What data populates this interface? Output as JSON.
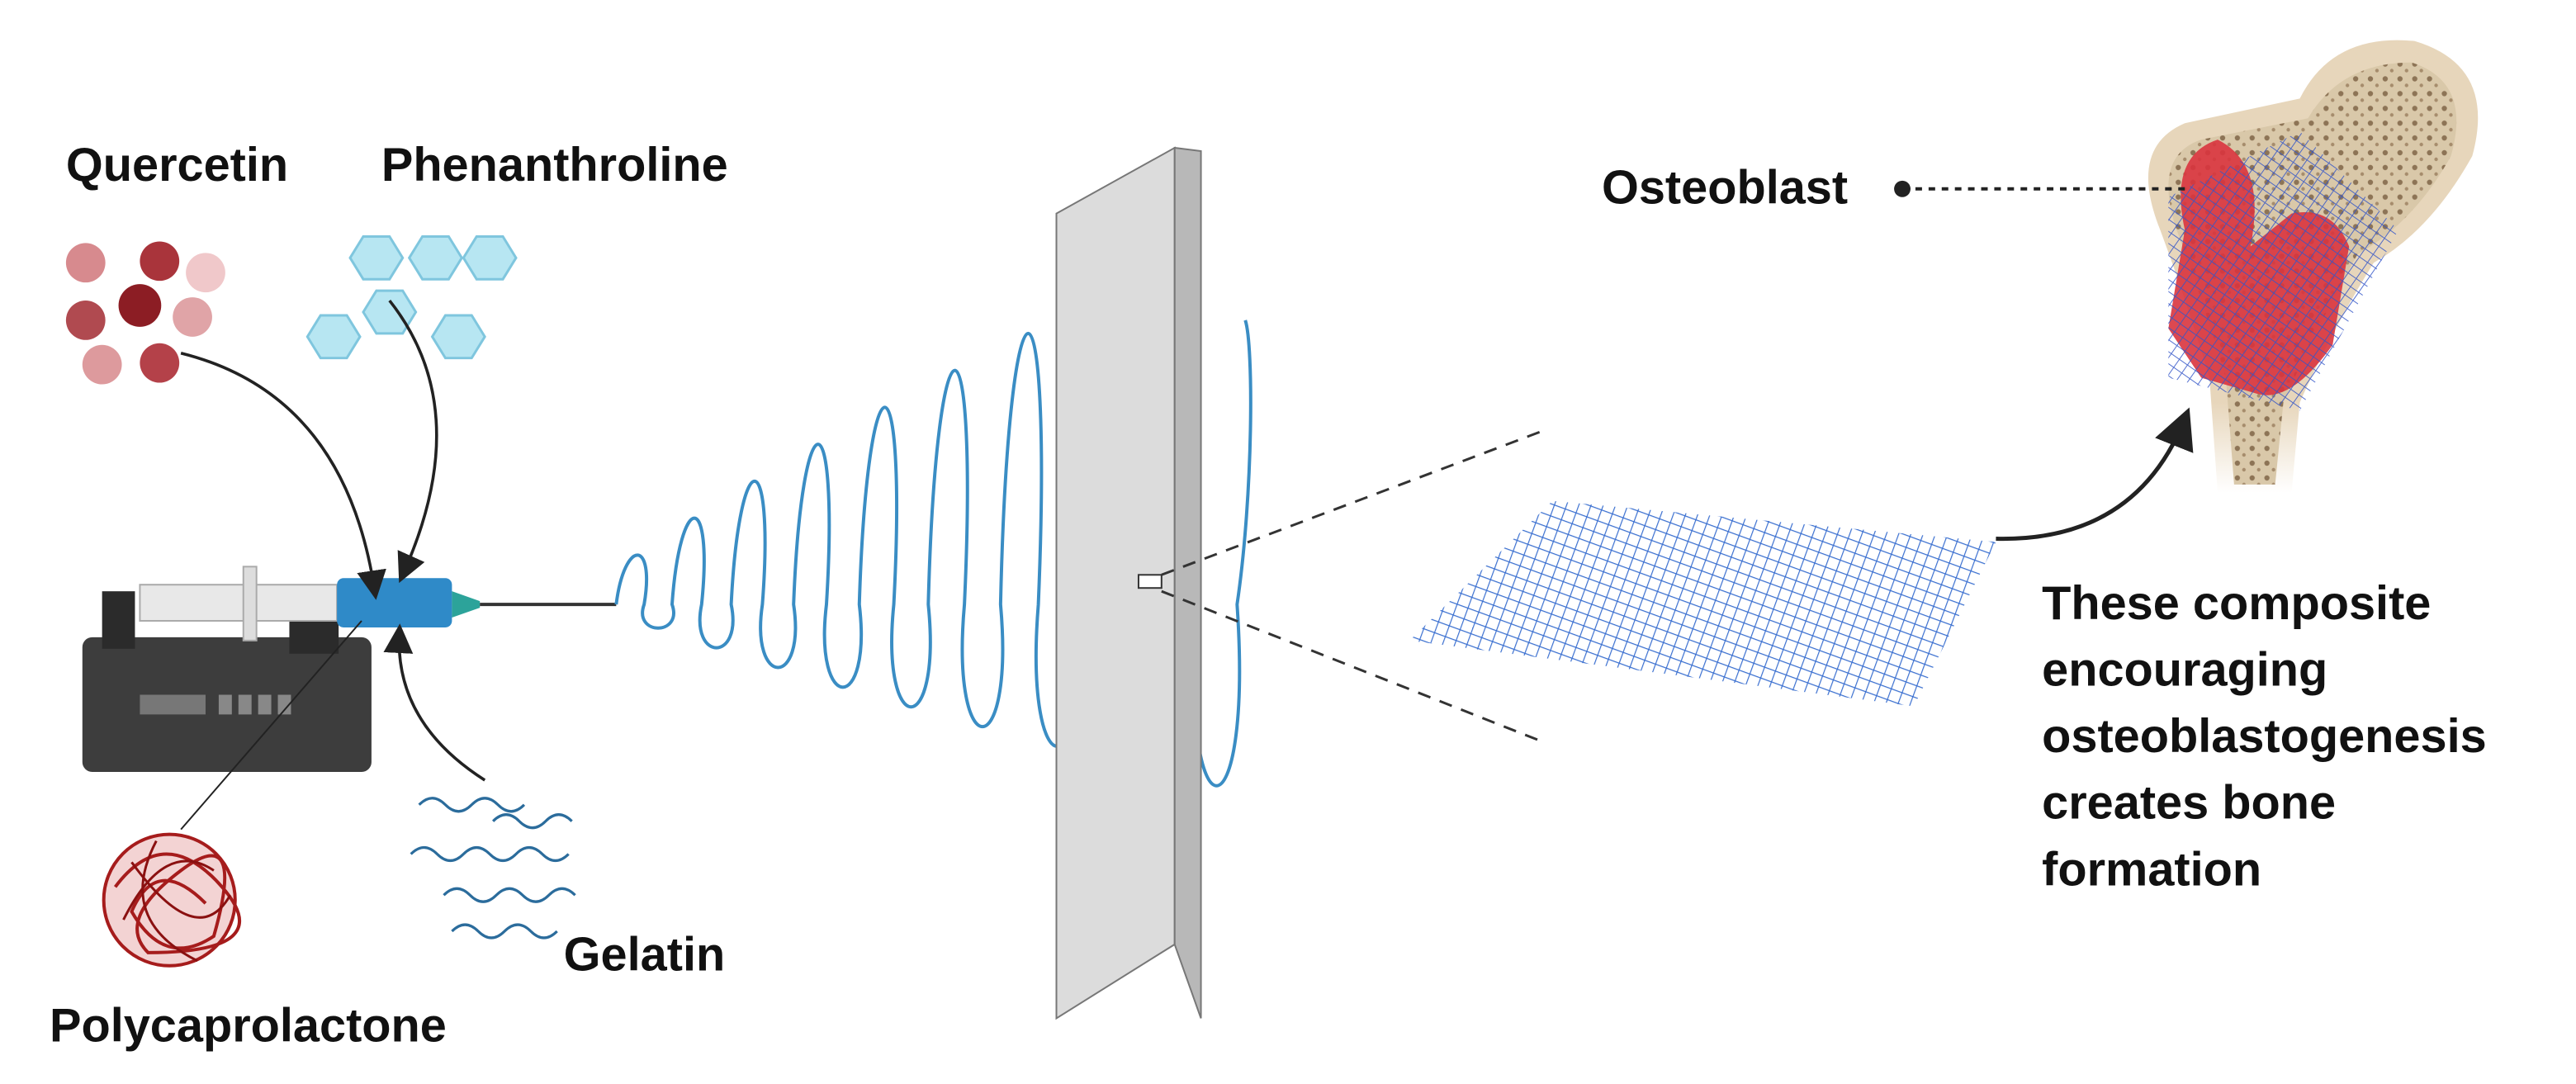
{
  "labels": {
    "quercetin": "Quercetin",
    "phenanthroline": "Phenanthroline",
    "polycaprolactone": "Polycaprolactone",
    "gelatin": "Gelatin",
    "osteoblast": "Osteoblast"
  },
  "caption": {
    "lines": [
      "These composite",
      "encouraging",
      "osteoblastogenesis",
      "creates bone",
      "formation"
    ]
  }
}
